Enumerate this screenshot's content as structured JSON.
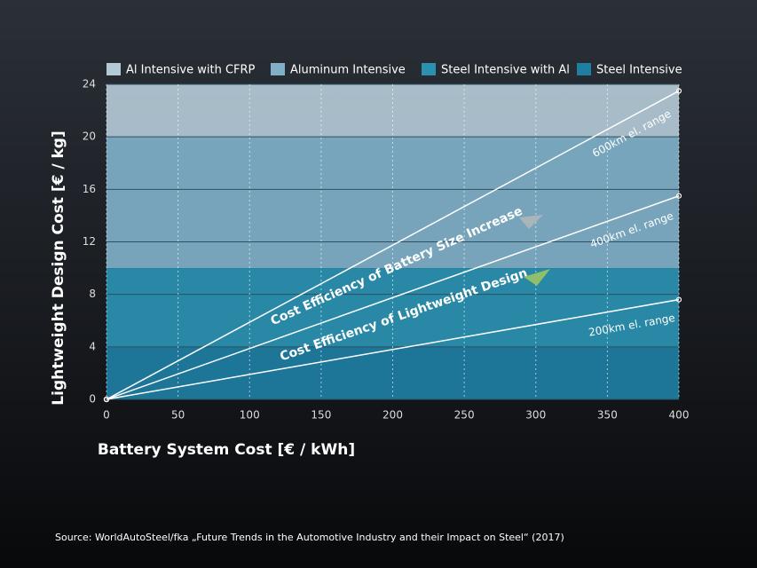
{
  "chart_data": {
    "type": "line",
    "xlabel": "Battery System Cost [€ / kWh]",
    "ylabel": "Lightweight Design Cost [€ / kg]",
    "xlim": [
      0,
      400
    ],
    "ylim": [
      0,
      24
    ],
    "xticks": [
      0,
      50,
      100,
      150,
      200,
      250,
      300,
      350,
      400
    ],
    "yticks": [
      0,
      4,
      8,
      12,
      16,
      20,
      24
    ],
    "grid": true,
    "bands": [
      {
        "name": "Al Intensive with CFRP",
        "color": "#b3c9d6",
        "range": [
          20,
          24
        ]
      },
      {
        "name": "Aluminum Intensive",
        "color": "#7fb0c8",
        "range": [
          10,
          20
        ]
      },
      {
        "name": "Steel Intensive with Al",
        "color": "#2a91b1",
        "range": [
          4,
          10
        ]
      },
      {
        "name": "Steel Intensive",
        "color": "#1e7fa3",
        "range": [
          0,
          4
        ]
      }
    ],
    "series": [
      {
        "name": "600km el. range",
        "color": "#ffffff",
        "x": [
          0,
          400
        ],
        "values": [
          0,
          23.5
        ]
      },
      {
        "name": "400km el. range",
        "color": "#ffffff",
        "x": [
          0,
          400
        ],
        "values": [
          0,
          15.5
        ]
      },
      {
        "name": "200km el. range",
        "color": "#ffffff",
        "x": [
          0,
          400
        ],
        "values": [
          0,
          7.6
        ]
      }
    ],
    "annotations": [
      "Cost Efficiency of Battery Size Increase",
      "Cost Efficiency of Lightweight Design"
    ],
    "source": "Source: WorldAutoSteel/fka „Future Trends in the Automotive Industry and their Impact on Steel“ (2017)"
  }
}
